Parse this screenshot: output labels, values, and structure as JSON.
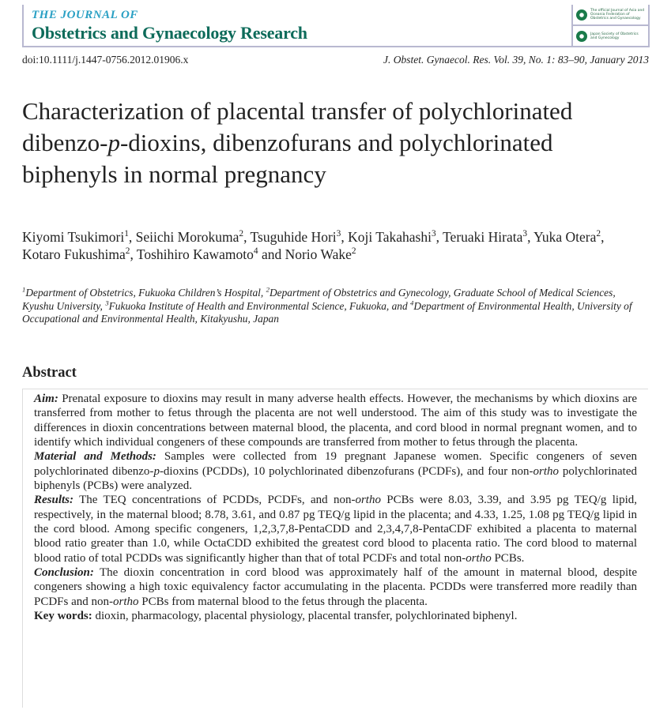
{
  "journal": {
    "line1": "THE JOURNAL OF",
    "line2": "Obstetrics and Gynaecology Research",
    "logo1_text": "The official Journal of Asia and Oceania Federation of Obstetrics and Gynaecology",
    "logo1_acronym": "AOFOG",
    "logo2_text": "Japan Society of Obstetrics and Gynecology"
  },
  "doi": "doi:10.1111/j.1447-0756.2012.01906.x",
  "citation": "J. Obstet. Gynaecol. Res. Vol. 39, No. 1: 83–90, January 2013",
  "title": [
    {
      "t": "Characterization of placental transfer of polychlorinated dibenzo-"
    },
    {
      "t": "p",
      "i": true
    },
    {
      "t": "-dioxins, dibenzofurans and polychlorinated biphenyls in normal pregnancy"
    }
  ],
  "authors": [
    {
      "t": "Kiyomi Tsukimori"
    },
    {
      "t": "1",
      "s": true
    },
    {
      "t": ", Seiichi Morokuma"
    },
    {
      "t": "2",
      "s": true
    },
    {
      "t": ", Tsuguhide Hori"
    },
    {
      "t": "3",
      "s": true
    },
    {
      "t": ", Koji Takahashi"
    },
    {
      "t": "3",
      "s": true
    },
    {
      "t": ", Teruaki Hirata"
    },
    {
      "t": "3",
      "s": true
    },
    {
      "t": ", Yuka Otera"
    },
    {
      "t": "2",
      "s": true
    },
    {
      "t": ", Kotaro Fukushima"
    },
    {
      "t": "2",
      "s": true
    },
    {
      "t": ", Toshihiro Kawamoto"
    },
    {
      "t": "4",
      "s": true
    },
    {
      "t": " and Norio Wake"
    },
    {
      "t": "2",
      "s": true
    }
  ],
  "affiliations": [
    {
      "t": "1",
      "s": true
    },
    {
      "t": "Department of Obstetrics, Fukuoka Children’s Hospital, "
    },
    {
      "t": "2",
      "s": true
    },
    {
      "t": "Department of Obstetrics and Gynecology, Graduate School of Medical Sciences, Kyushu University, "
    },
    {
      "t": "3",
      "s": true
    },
    {
      "t": "Fukuoka Institute of Health and Environmental Science, Fukuoka, and "
    },
    {
      "t": "4",
      "s": true
    },
    {
      "t": "Department of Environmental Health, University of Occupational and Environmental Health, Kitakyushu, Japan"
    }
  ],
  "abstract": {
    "heading": "Abstract",
    "paragraphs": [
      [
        {
          "t": "Aim:",
          "l": true
        },
        {
          "t": " Prenatal exposure to dioxins may result in many adverse health effects. However, the mechanisms by which dioxins are transferred from mother to fetus through the placenta are not well understood. The aim of this study was to investigate the differences in dioxin concentrations between maternal blood, the placenta, and cord blood in normal pregnant women, and to identify which individual congeners of these compounds are transferred from mother to fetus through the placenta."
        }
      ],
      [
        {
          "t": "Material and Methods:",
          "l": true
        },
        {
          "t": " Samples were collected from 19 pregnant Japanese women. Specific congeners of seven polychlorinated dibenzo-"
        },
        {
          "t": "p",
          "i": true
        },
        {
          "t": "-dioxins (PCDDs), 10 polychlorinated dibenzofurans (PCDFs), and four non-"
        },
        {
          "t": "ortho",
          "i": true
        },
        {
          "t": " polychlorinated biphenyls (PCBs) were analyzed."
        }
      ],
      [
        {
          "t": "Results:",
          "l": true
        },
        {
          "t": " The TEQ concentrations of PCDDs, PCDFs, and non-"
        },
        {
          "t": "ortho",
          "i": true
        },
        {
          "t": " PCBs were 8.03, 3.39, and 3.95 pg TEQ/g lipid, respectively, in the maternal blood; 8.78, 3.61, and 0.87 pg TEQ/g lipid in the placenta; and 4.33, 1.25, 1.08 pg TEQ/g lipid in the cord blood. Among specific congeners, 1,2,3,7,8-PentaCDD and 2,3,4,7,8-PentaCDF exhibited a placenta to maternal blood ratio greater than 1.0, while OctaCDD exhibited the greatest cord blood to placenta ratio. The cord blood to maternal blood ratio of total PCDDs was significantly higher than that of total PCDFs and total non-"
        },
        {
          "t": "ortho",
          "i": true
        },
        {
          "t": " PCBs."
        }
      ],
      [
        {
          "t": "Conclusion:",
          "l": true
        },
        {
          "t": " The dioxin concentration in cord blood was approximately half of the amount in maternal blood, despite congeners showing a high toxic equivalency factor accumulating in the placenta. PCDDs were transferred more readily than PCDFs and non-"
        },
        {
          "t": "ortho",
          "i": true
        },
        {
          "t": " PCBs from maternal blood to the fetus through the placenta."
        }
      ]
    ],
    "keywords_label": "Key words:",
    "keywords": " dioxin, pharmacology, placental physiology, placental transfer, polychlorinated biphenyl."
  }
}
